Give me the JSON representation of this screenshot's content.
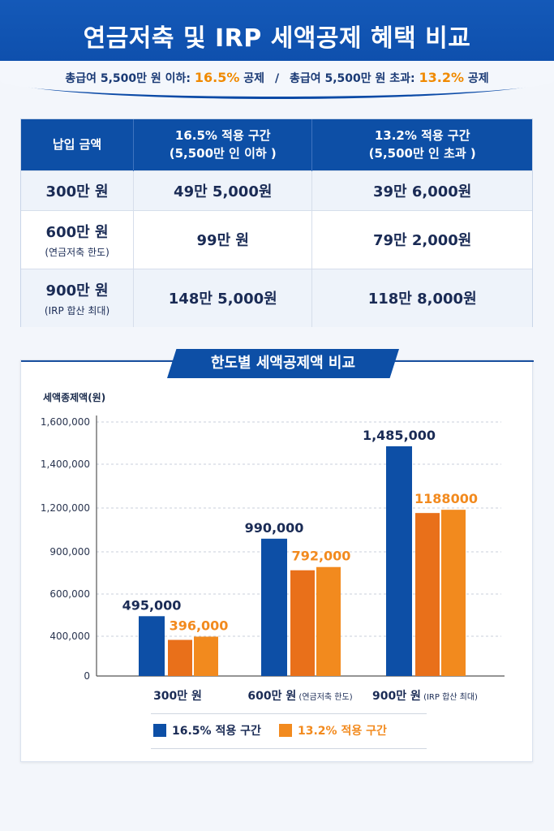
{
  "header": {
    "title": "연금저축 및 IRP 세액공제 혜택 비교",
    "sub_part1": "총급여 5,500만 원 이하: ",
    "sub_rate1": "16.5%",
    "sub_part2": " 공제",
    "sub_sep": "/",
    "sub_part3": "총급여 5,500만 원 초과: ",
    "sub_rate2": "13.2%",
    "sub_part4": " 공제"
  },
  "table": {
    "headers": [
      {
        "line1": "납입 금액",
        "line2": ""
      },
      {
        "line1": "16.5% 적용 구간",
        "line2": "(5,500만 인 이하 )"
      },
      {
        "line1": "13.2% 적용 구간",
        "line2": "(5,500만 인 초과 )"
      }
    ],
    "rows": [
      {
        "amount": "300만 원",
        "note": "",
        "a": "49만 5,000원",
        "b": "39만 6,000원"
      },
      {
        "amount": "600만 원",
        "note": "(연금저축 한도)",
        "a": "99만 원",
        "b": "79만 2,000원"
      },
      {
        "amount": "900만 원",
        "note": "(IRP 합산 최대)",
        "a": "148만 5,000원",
        "b": "118만 8,000원"
      }
    ]
  },
  "chart_title": "한도별 세액공제액 비교",
  "colors": {
    "blue": "#0d4fa6",
    "orange": "#f28a1e",
    "orange_dark": "#e9701a"
  },
  "chart_data": {
    "type": "bar",
    "ylabel": "세액종제액(원)",
    "yticks": [
      "1,600,000",
      "1,400,000",
      "1,200,000",
      "900,000",
      "600,000",
      "400,000",
      "0"
    ],
    "categories": [
      {
        "main": "300만 원",
        "note": ""
      },
      {
        "main": "600만 원",
        "note": "(연금저축 한도)"
      },
      {
        "main": "900만 원",
        "note": "(IRP 합산 최대)"
      }
    ],
    "series": [
      {
        "name": "16.5% 적용 구간",
        "values": [
          495000,
          990000,
          1485000
        ],
        "labels": [
          "495,000",
          "990,000",
          "1,485,000"
        ]
      },
      {
        "name": "13.2% 적용 구간",
        "values": [
          396000,
          792000,
          1188000
        ],
        "labels": [
          "396,000",
          "792,000",
          "1188000"
        ]
      }
    ],
    "ylim": [
      0,
      1600000
    ],
    "grid": true,
    "legend": "bottom"
  }
}
